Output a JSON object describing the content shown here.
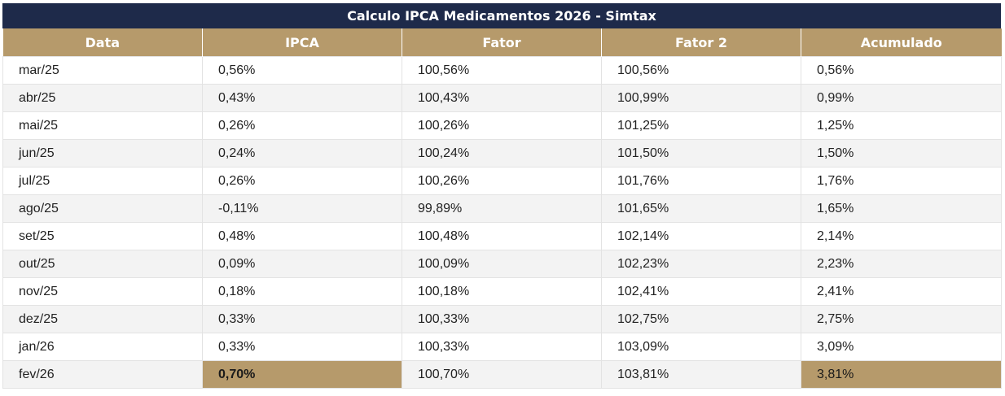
{
  "title": "Calculo IPCA Medicamentos 2026 - Simtax",
  "columns": [
    "Data",
    "IPCA",
    "Fator",
    "Fator 2",
    "Acumulado"
  ],
  "rows": [
    [
      "mar/25",
      "0,56%",
      "100,56%",
      "100,56%",
      "0,56%"
    ],
    [
      "abr/25",
      "0,43%",
      "100,43%",
      "100,99%",
      "0,99%"
    ],
    [
      "mai/25",
      "0,26%",
      "100,26%",
      "101,25%",
      "1,25%"
    ],
    [
      "jun/25",
      "0,24%",
      "100,24%",
      "101,50%",
      "1,50%"
    ],
    [
      "jul/25",
      "0,26%",
      "100,26%",
      "101,76%",
      "1,76%"
    ],
    [
      "ago/25",
      "-0,11%",
      "99,89%",
      "101,65%",
      "1,65%"
    ],
    [
      "set/25",
      "0,48%",
      "100,48%",
      "102,14%",
      "2,14%"
    ],
    [
      "out/25",
      "0,09%",
      "100,09%",
      "102,23%",
      "2,23%"
    ],
    [
      "nov/25",
      "0,18%",
      "100,18%",
      "102,41%",
      "2,41%"
    ],
    [
      "dez/25",
      "0,33%",
      "100,33%",
      "102,75%",
      "2,75%"
    ],
    [
      "jan/26",
      "0,33%",
      "100,33%",
      "103,09%",
      "3,09%"
    ],
    [
      "fev/26",
      "0,70%",
      "100,70%",
      "103,81%",
      "3,81%"
    ]
  ],
  "colors": {
    "title_background": "#1e2a4a",
    "header_background": "#b69a6b",
    "highlight": "#b69a6b",
    "stripe": "#f3f3f3"
  }
}
